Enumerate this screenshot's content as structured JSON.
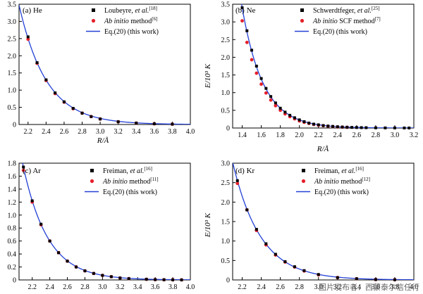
{
  "chart_data": [
    {
      "type": "scatter",
      "panel": "(a) He",
      "xlabel": "R/Å",
      "ylabel": "",
      "xlim": [
        2.1,
        4.0
      ],
      "ylim": [
        0,
        3.5
      ],
      "xticks": [
        "2.2",
        "2.4",
        "2.6",
        "2.8",
        "3.0",
        "3.2",
        "3.4",
        "3.6",
        "3.8",
        "4.0"
      ],
      "yticks": [
        "0",
        "0.5",
        "1.0",
        "1.5",
        "2.0",
        "2.5",
        "3.0",
        "3.5"
      ],
      "legend": [
        {
          "label": "Loubeyre, et al.",
          "ref": "[18]",
          "marker": "square"
        },
        {
          "label": "Ab initio method",
          "ref": "[6]",
          "marker": "circle"
        },
        {
          "label": "Eq.(20) (this work)",
          "ref": "",
          "marker": "line"
        }
      ],
      "series": [
        {
          "name": "Loubeyre, et al.",
          "x": [
            2.2,
            2.3,
            2.4,
            2.5,
            2.6,
            2.7,
            2.8,
            2.9,
            3.0,
            3.2,
            3.4,
            3.6,
            3.8
          ],
          "y": [
            2.55,
            1.8,
            1.3,
            0.92,
            0.66,
            0.47,
            0.33,
            0.23,
            0.16,
            0.08,
            0.04,
            0.02,
            0.01
          ]
        },
        {
          "name": "Ab initio method",
          "x": [
            2.2,
            2.3,
            2.4,
            2.5,
            2.6,
            2.7,
            2.8,
            2.9,
            3.0,
            3.2,
            3.4,
            3.6,
            3.8
          ],
          "y": [
            2.48,
            1.78,
            1.28,
            0.9,
            0.65,
            0.46,
            0.33,
            0.23,
            0.16,
            0.08,
            0.04,
            0.02,
            0.01
          ]
        }
      ],
      "curve": {
        "a": 2.2,
        "b": 2.5,
        "k": 3.3
      }
    },
    {
      "type": "scatter",
      "panel": "(b) Ne",
      "xlabel": "R/Å",
      "ylabel": "E/10³ K",
      "xlim": [
        1.3,
        3.2
      ],
      "ylim": [
        0,
        3.5
      ],
      "xticks": [
        "1.4",
        "1.6",
        "1.8",
        "2.0",
        "2.2",
        "2.4",
        "2.6",
        "2.8",
        "3.0",
        "3.2"
      ],
      "yticks": [
        "0",
        "0.5",
        "1.0",
        "1.5",
        "2.0",
        "2.5",
        "3.0",
        "3.5"
      ],
      "legend": [
        {
          "label": "Schwerdtfeger, et al.",
          "ref": "[25]",
          "marker": "square"
        },
        {
          "label": "Ab initio SCF method",
          "ref": "[7]",
          "marker": "circle"
        },
        {
          "label": "Eq.(20) (this work)",
          "ref": "",
          "marker": "line"
        }
      ],
      "series": [
        {
          "name": "Schwerdtfeger, et al.",
          "x": [
            1.4,
            1.45,
            1.5,
            1.55,
            1.6,
            1.65,
            1.7,
            1.75,
            1.8,
            1.85,
            1.9,
            1.95,
            2.0,
            2.05,
            2.1,
            2.15,
            2.2,
            2.25,
            2.3,
            2.35,
            2.4,
            2.45,
            2.5,
            2.55,
            2.6,
            2.65,
            2.7,
            2.8,
            2.9,
            3.0,
            3.1,
            3.15
          ],
          "y": [
            3.4,
            2.75,
            2.2,
            1.75,
            1.4,
            1.12,
            0.89,
            0.71,
            0.56,
            0.45,
            0.36,
            0.29,
            0.23,
            0.18,
            0.14,
            0.11,
            0.09,
            0.07,
            0.055,
            0.045,
            0.035,
            0.028,
            0.022,
            0.017,
            0.014,
            0.011,
            0.009,
            0.005,
            0.003,
            0.002,
            0.001,
            0.001
          ]
        },
        {
          "name": "Ab initio SCF method",
          "x": [
            1.4,
            1.45,
            1.5,
            1.55,
            1.6,
            1.65,
            1.7,
            1.75,
            1.8,
            1.85,
            1.9,
            1.95,
            2.0,
            2.05,
            2.1,
            2.15,
            2.2,
            2.25,
            2.3,
            2.35,
            2.4,
            2.45,
            2.5
          ],
          "y": [
            3.03,
            2.42,
            1.93,
            1.55,
            1.24,
            0.99,
            0.79,
            0.63,
            0.5,
            0.4,
            0.32,
            0.26,
            0.2,
            0.16,
            0.13,
            0.1,
            0.08,
            0.065,
            0.05,
            0.04,
            0.03,
            0.025,
            0.02
          ]
        }
      ],
      "curve": {
        "a": 1.4,
        "b": 3.4,
        "k": 4.5
      }
    },
    {
      "type": "scatter",
      "panel": "(c) Ar",
      "xlabel": "",
      "ylabel": "",
      "xlim": [
        2.05,
        4.0
      ],
      "ylim": [
        0,
        1.8
      ],
      "xticks": [
        "2.2",
        "2.4",
        "2.6",
        "2.8",
        "3.0",
        "3.2",
        "3.4",
        "3.6",
        "3.8",
        "4.0"
      ],
      "yticks": [
        "0",
        "0.2",
        "0.4",
        "0.6",
        "0.8",
        "1.0",
        "1.2",
        "1.4",
        "1.6",
        "1.8"
      ],
      "legend": [
        {
          "label": "Freiman, et al.",
          "ref": "[16]",
          "marker": "square"
        },
        {
          "label": "Ab initio method",
          "ref": "[11]",
          "marker": "circle"
        },
        {
          "label": "Eq.(20) (this work)",
          "ref": "",
          "marker": "line"
        }
      ],
      "series": [
        {
          "name": "Freiman, et al.",
          "x": [
            2.1,
            2.2,
            2.3,
            2.4,
            2.5,
            2.6,
            2.7,
            2.8,
            2.9,
            3.0,
            3.1,
            3.2,
            3.3,
            3.5,
            3.6,
            3.7,
            3.8,
            3.9
          ],
          "y": [
            1.74,
            1.22,
            0.86,
            0.6,
            0.42,
            0.29,
            0.2,
            0.14,
            0.1,
            0.07,
            0.05,
            0.03,
            0.02,
            0.01,
            0.005,
            0.003,
            0.002,
            0.001
          ]
        },
        {
          "name": "Ab initio method",
          "x": [
            2.1,
            2.2,
            2.3,
            2.4,
            2.5,
            2.6,
            2.7,
            2.8,
            2.9,
            3.0,
            3.1,
            3.2,
            3.3,
            3.5,
            3.6,
            3.7,
            3.8,
            3.9
          ],
          "y": [
            1.69,
            1.2,
            0.85,
            0.6,
            0.42,
            0.29,
            0.2,
            0.14,
            0.1,
            0.07,
            0.05,
            0.03,
            0.02,
            0.01,
            0.005,
            0.003,
            0.002,
            0.001
          ]
        }
      ],
      "curve": {
        "a": 2.1,
        "b": 1.74,
        "k": 3.55
      }
    },
    {
      "type": "scatter",
      "panel": "(d) Kr",
      "xlabel": "",
      "ylabel": "E/10³ K",
      "xlim": [
        2.1,
        4.0
      ],
      "ylim": [
        0,
        3.0
      ],
      "xticks": [
        "2.2",
        "2.4",
        "2.6",
        "2.8",
        "3.0",
        "3.2",
        "3.4",
        "3.6",
        "3.8",
        "4.0"
      ],
      "yticks": [
        "0",
        "0.5",
        "1.0",
        "1.5",
        "2.0",
        "2.5",
        "3.0"
      ],
      "legend": [
        {
          "label": "Freiman, et al.",
          "ref": "[16]",
          "marker": "square"
        },
        {
          "label": "Ab initio method",
          "ref": "[12]",
          "marker": "circle"
        },
        {
          "label": "Eq.(20) (this work)",
          "ref": "",
          "marker": "line"
        }
      ],
      "series": [
        {
          "name": "Freiman, et al.",
          "x": [
            2.15,
            2.25,
            2.35,
            2.45,
            2.55,
            2.65,
            2.75,
            2.85,
            3.0,
            3.2,
            3.4,
            3.6,
            3.8
          ],
          "y": [
            2.55,
            1.8,
            1.3,
            0.93,
            0.66,
            0.47,
            0.34,
            0.24,
            0.14,
            0.06,
            0.03,
            0.01,
            0.005
          ]
        },
        {
          "name": "Ab initio method",
          "x": [
            2.15,
            2.25,
            2.35,
            2.45,
            2.55,
            2.65,
            2.75,
            2.85,
            3.0,
            3.2,
            3.4,
            3.6,
            3.8
          ],
          "y": [
            2.48,
            1.8,
            1.27,
            0.9,
            0.64,
            0.46,
            0.33,
            0.23,
            0.13,
            0.06,
            0.03,
            0.01,
            0.005
          ]
        }
      ],
      "curve": {
        "a": 2.15,
        "b": 2.55,
        "k": 3.4
      }
    }
  ],
  "watermark": "图片发布者：西蒙泰尔信任行"
}
